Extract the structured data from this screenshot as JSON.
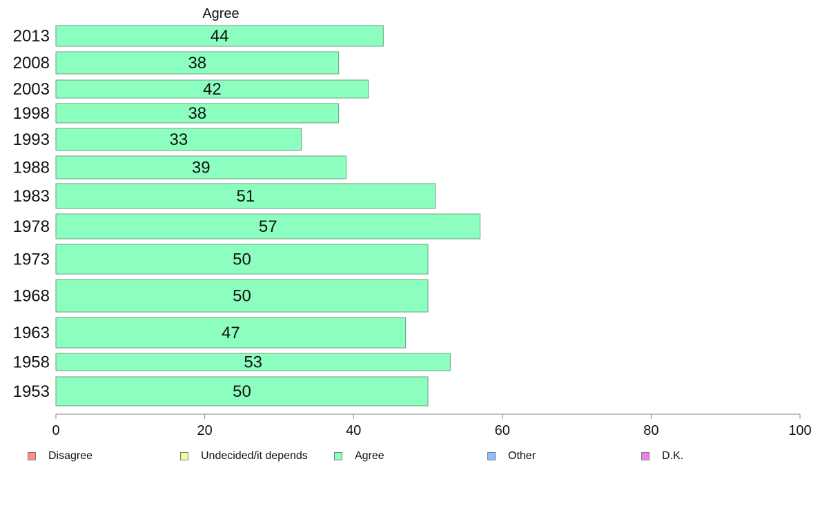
{
  "chart_data": {
    "type": "bar",
    "orientation": "horizontal",
    "series_label": "Agree",
    "categories": [
      "2013",
      "2008",
      "2003",
      "1998",
      "1993",
      "1988",
      "1983",
      "1978",
      "1973",
      "1968",
      "1963",
      "1958",
      "1953"
    ],
    "values": [
      44,
      38,
      42,
      38,
      33,
      39,
      51,
      57,
      50,
      50,
      47,
      53,
      50
    ],
    "value_labels": [
      "44",
      "38",
      "42",
      "38",
      "33",
      "39",
      "51",
      "57",
      "50",
      "50",
      "47",
      "53",
      "50"
    ],
    "xlim": [
      0,
      100
    ],
    "xticks": [
      0,
      20,
      40,
      60,
      80,
      100
    ],
    "xtick_labels": [
      "0",
      "20",
      "40",
      "60",
      "80",
      "100"
    ],
    "legend": [
      {
        "label": "Disagree",
        "color": "#ff8f8f"
      },
      {
        "label": "Undecided/it depends",
        "color": "#eeff99"
      },
      {
        "label": "Agree",
        "color": "#8cffc0"
      },
      {
        "label": "Other",
        "color": "#8cbfff"
      },
      {
        "label": "D.K.",
        "color": "#ee80ee"
      }
    ],
    "legend_position": "bottom",
    "grid": false,
    "bar_color": "#8cffc0"
  }
}
